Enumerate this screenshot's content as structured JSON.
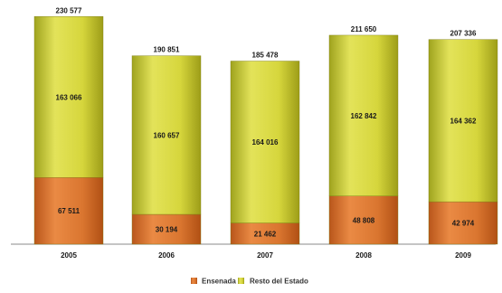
{
  "chart_data": {
    "type": "bar",
    "stacked": true,
    "categories": [
      "2005",
      "2006",
      "2007",
      "2008",
      "2009"
    ],
    "series": [
      {
        "name": "Ensenada",
        "values": [
          67511,
          30194,
          21462,
          48808,
          42974
        ],
        "labels": [
          "67 511",
          "30 194",
          "21 462",
          "48 808",
          "42 974"
        ]
      },
      {
        "name": "Resto del Estado",
        "values": [
          163066,
          160657,
          164016,
          162842,
          164362
        ],
        "labels": [
          "163 066",
          "160 657",
          "164 016",
          "162 842",
          "164 362"
        ]
      }
    ],
    "totals": [
      230577,
      190851,
      185478,
      211650,
      207336
    ],
    "total_labels": [
      "230 577",
      "190 851",
      "185 478",
      "211 650",
      "207 336"
    ],
    "ylim": [
      0,
      240000
    ],
    "grid": false,
    "legend_position": "bottom",
    "colors": {
      "Ensenada": "#d9722a",
      "Resto del Estado": "#cfcf2c"
    }
  }
}
